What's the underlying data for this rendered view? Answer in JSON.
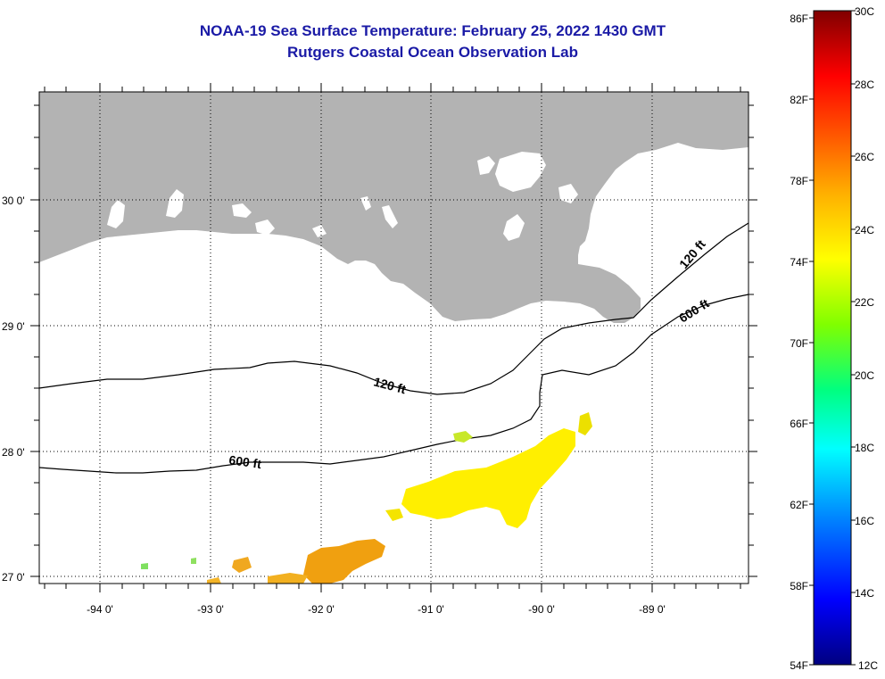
{
  "title": "NOAA-19 Sea Surface Temperature:  February 25, 2022 1430 GMT",
  "subtitle": "Rutgers Coastal Ocean Observation Lab",
  "map": {
    "lat_labels": [
      "30 0'",
      "29 0'",
      "28 0'",
      "27 0'"
    ],
    "lon_labels": [
      "-94 0'",
      "-93 0'",
      "-92 0'",
      "-91 0'",
      "-90 0'",
      "-89 0'"
    ],
    "contour_labels": [
      "120 ft",
      "600 ft",
      "120 ft",
      "600 ft"
    ],
    "land_color": "#b3b3b3",
    "water_color": "#ffffff",
    "grid": "dotted"
  },
  "colorbar": {
    "fahrenheit_labels": [
      "86F",
      "82F",
      "78F",
      "74F",
      "70F",
      "66F",
      "62F",
      "58F",
      "54F"
    ],
    "celsius_labels": [
      "30C",
      "28C",
      "26C",
      "24C",
      "22C",
      "20C",
      "18C",
      "16C",
      "14C",
      "12C"
    ],
    "range_c": [
      12,
      30
    ],
    "colors": [
      "#000080",
      "#0000ff",
      "#0080ff",
      "#00ffff",
      "#00ff80",
      "#80ff00",
      "#ffff00",
      "#ffb000",
      "#ff6000",
      "#ff0000",
      "#800000"
    ]
  }
}
